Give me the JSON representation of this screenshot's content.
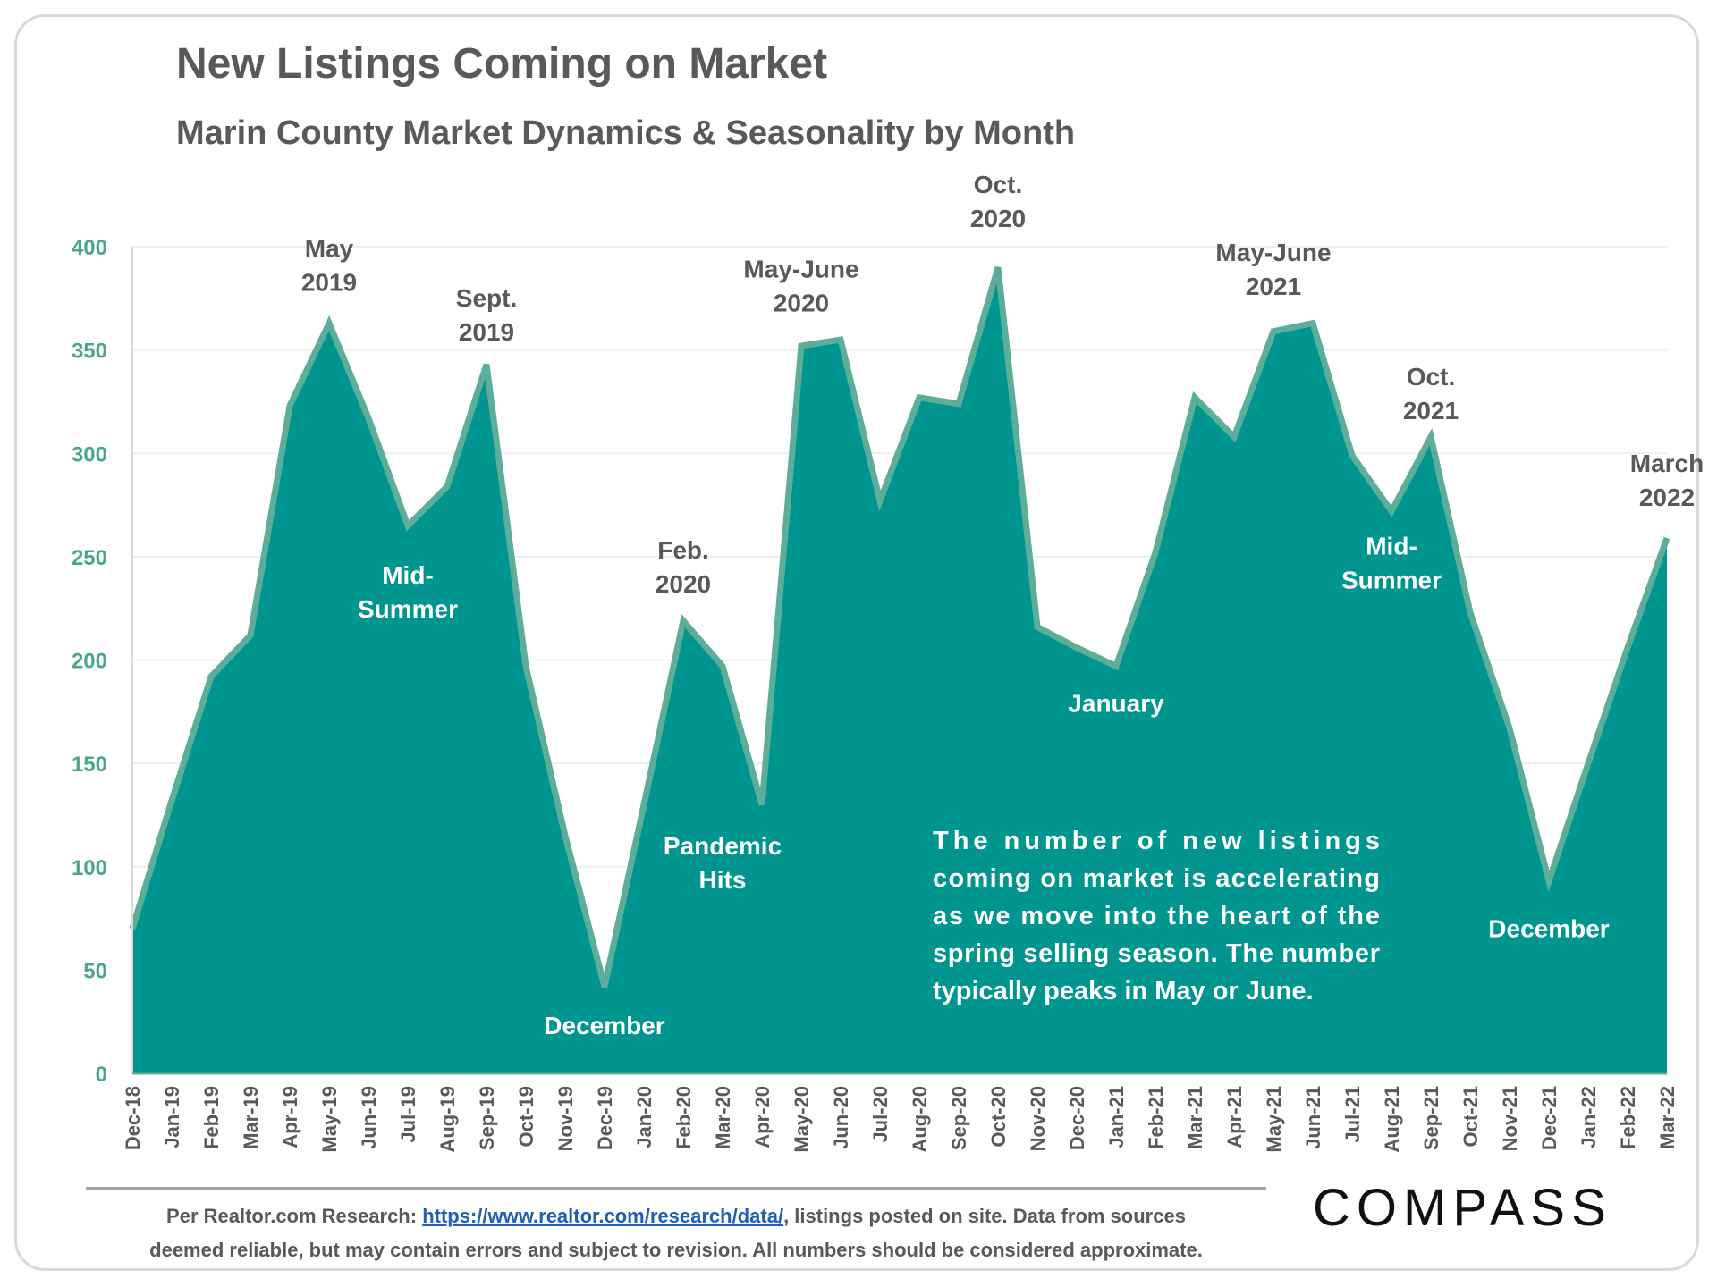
{
  "title": "New Listings Coming on Market",
  "subtitle": "Marin County Market Dynamics & Seasonality by Month",
  "chart_data": {
    "type": "area",
    "categories": [
      "Dec-18",
      "Jan-19",
      "Feb-19",
      "Mar-19",
      "Apr-19",
      "May-19",
      "Jun-19",
      "Jul-19",
      "Aug-19",
      "Sep-19",
      "Oct-19",
      "Nov-19",
      "Dec-19",
      "Jan-20",
      "Feb-20",
      "Mar-20",
      "Apr-20",
      "May-20",
      "Jun-20",
      "Jul-20",
      "Aug-20",
      "Sep-20",
      "Oct-20",
      "Nov-20",
      "Dec-20",
      "Jan-21",
      "Feb-21",
      "Mar-21",
      "Apr-21",
      "May-21",
      "Jun-21",
      "Jul-21",
      "Aug-21",
      "Sep-21",
      "Oct-21",
      "Nov-21",
      "Dec-21",
      "Jan-22",
      "Feb-22",
      "Mar-22"
    ],
    "values": [
      70,
      132,
      192,
      212,
      323,
      363,
      317,
      265,
      284,
      343,
      197,
      115,
      42,
      130,
      219,
      197,
      130,
      352,
      355,
      277,
      327,
      324,
      390,
      216,
      206,
      197,
      252,
      327,
      308,
      359,
      363,
      299,
      272,
      308,
      223,
      167,
      93,
      150,
      206,
      259
    ],
    "ylim": [
      0,
      400
    ],
    "yticks": [
      "0",
      "50",
      "100",
      "150",
      "200",
      "250",
      "300",
      "350",
      "400"
    ],
    "ytick_values": [
      0,
      50,
      100,
      150,
      200,
      250,
      300,
      350,
      400
    ],
    "grid": true,
    "legend": "none",
    "annotations": [
      {
        "lines": [
          "May",
          "2019"
        ],
        "at": "May-19",
        "value": 395,
        "color": "dark"
      },
      {
        "lines": [
          "Sept.",
          "2019"
        ],
        "at": "Sep-19",
        "value": 371,
        "color": "dark"
      },
      {
        "lines": [
          "Mid-",
          "Summer"
        ],
        "at": "Jul-19",
        "value": 237,
        "color": "light"
      },
      {
        "lines": [
          "December"
        ],
        "at": "Dec-19",
        "value": 19,
        "color": "light"
      },
      {
        "lines": [
          "Feb.",
          "2020"
        ],
        "at": "Feb-20",
        "value": 249,
        "color": "dark"
      },
      {
        "lines": [
          "Pandemic",
          "Hits"
        ],
        "at": "Mar-20",
        "value": 106,
        "color": "light"
      },
      {
        "lines": [
          "May-June",
          "2020"
        ],
        "at": "May-20",
        "value": 385,
        "color": "dark"
      },
      {
        "lines": [
          "Oct.",
          "2020"
        ],
        "at": "Oct-20",
        "value": 426,
        "color": "dark"
      },
      {
        "lines": [
          "January"
        ],
        "at": "Jan-21",
        "value": 175,
        "color": "light"
      },
      {
        "lines": [
          "May-June",
          "2021"
        ],
        "at": "May-21",
        "value": 393,
        "color": "dark"
      },
      {
        "lines": [
          "Oct.",
          "2021"
        ],
        "at": "Sep-21",
        "value": 333,
        "color": "dark"
      },
      {
        "lines": [
          "Mid-",
          "Summer"
        ],
        "at": "Aug-21",
        "value": 251,
        "color": "light"
      },
      {
        "lines": [
          "December"
        ],
        "at": "Dec-21",
        "value": 66,
        "color": "light"
      },
      {
        "lines": [
          "March",
          "2022"
        ],
        "at": "Mar-22",
        "value": 291,
        "color": "dark"
      }
    ],
    "note": [
      "The number of new listings",
      "coming on market is accelerating",
      "as we move into the heart of the",
      "spring selling season. The number",
      "typically peaks in May or June."
    ],
    "colors": {
      "fill": "#00958f",
      "line": "#5cae9a",
      "axis_label": "#4aa68f",
      "dark_text": "#595959",
      "light_text": "#ffffff",
      "tick_text": "#595959",
      "grid": "#efefef"
    }
  },
  "footer": {
    "prefix": "Per Realtor.com Research:  ",
    "link": "https://www.realtor.com/research/data/",
    "suffix": ", listings posted on site. Data from sources",
    "line2": "deemed reliable, but may contain errors and subject to revision. All numbers should be considered approximate."
  },
  "logo": "COMPASS"
}
